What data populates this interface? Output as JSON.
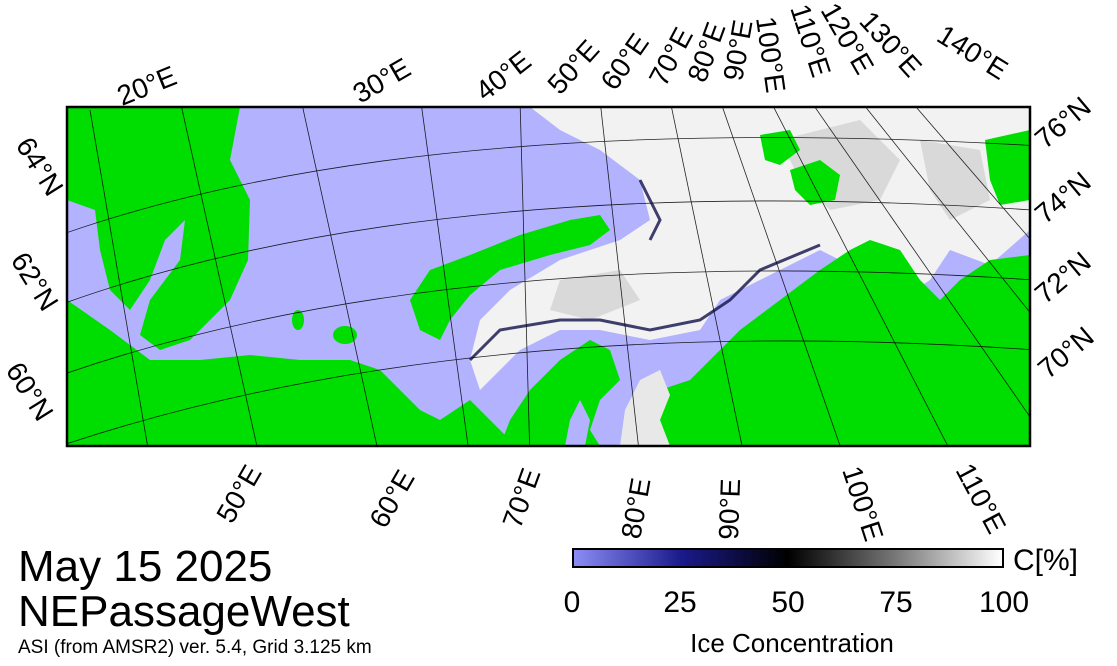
{
  "title": {
    "date": "May 15 2025",
    "region": "NEPassageWest",
    "product": "ASI (from AMSR2) ver. 5.4,  Grid 3.125 km"
  },
  "map": {
    "top_lon_labels": [
      "20°E",
      "30°E",
      "40°E",
      "50°E",
      "60°E",
      "70°E",
      "80°E",
      "90°E",
      "100°E",
      "110°E",
      "120°E",
      "130°E",
      "140°E"
    ],
    "bottom_lon_labels": [
      "50°E",
      "60°E",
      "70°E",
      "80°E",
      "90°E",
      "100°E",
      "110°E"
    ],
    "left_lat_labels": [
      "64°N",
      "62°N",
      "60°N"
    ],
    "right_lat_labels": [
      "76°N",
      "74°N",
      "72°N",
      "70°N"
    ],
    "colors": {
      "land": "#00dd00",
      "open_water": "#b2b2ff",
      "frame": "#000000"
    }
  },
  "colorbar": {
    "ticks": [
      "0",
      "25",
      "50",
      "75",
      "100"
    ],
    "unit": "C[%]",
    "title": "Ice Concentration",
    "stops": [
      "#8c8cf5",
      "#1a1a8c",
      "#000000",
      "#777777",
      "#ffffff"
    ]
  }
}
